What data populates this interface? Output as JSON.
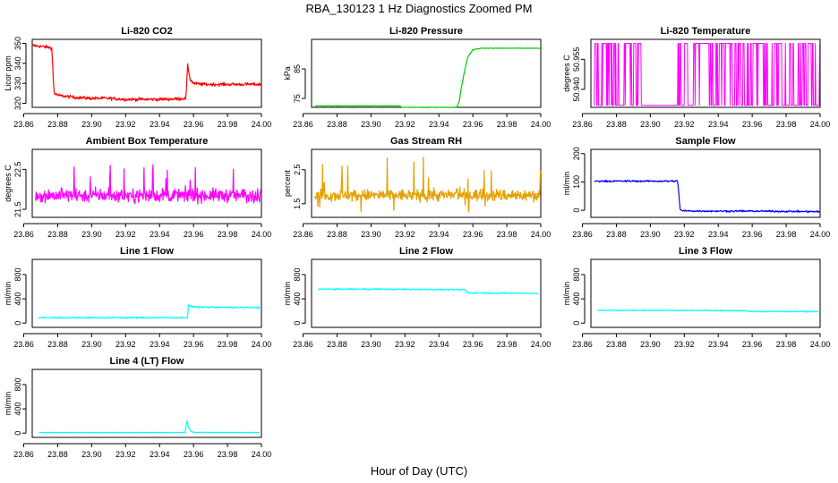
{
  "figure": {
    "title": "RBA_130123  1 Hz Diagnostics Zoomed PM",
    "xlabel": "Hour of Day (UTC)"
  },
  "chart_data": [
    {
      "type": "line",
      "title": "Li-820 CO2",
      "ylabel": "Licor ppm",
      "color": "#ff0000",
      "xlim": [
        23.865,
        24.0
      ],
      "ylim": [
        318,
        352
      ],
      "xticks": [
        23.86,
        23.88,
        23.9,
        23.92,
        23.94,
        23.96,
        23.98,
        24.0
      ],
      "yticks": [
        320,
        330,
        340,
        350
      ],
      "ytick_labels": [
        "320",
        "330",
        "340",
        "350"
      ],
      "series": [
        {
          "name": "CO2",
          "x": [
            23.865,
            23.87,
            23.875,
            23.8765,
            23.877,
            23.8775,
            23.878,
            23.88,
            23.885,
            23.89,
            23.9,
            23.91,
            23.92,
            23.93,
            23.94,
            23.95,
            23.9555,
            23.956,
            23.9565,
            23.957,
            23.958,
            23.96,
            23.965,
            23.97,
            23.98,
            23.99,
            24.0
          ],
          "values": [
            349,
            348.5,
            348,
            347.5,
            340,
            330,
            325,
            324,
            323.5,
            323,
            322.5,
            322.5,
            322,
            322,
            322,
            322.2,
            322.5,
            330,
            339,
            337,
            332,
            330,
            329.5,
            329.5,
            329.5,
            329.5,
            329.5
          ],
          "noise": 0.8
        }
      ]
    },
    {
      "type": "line",
      "title": "Li-820 Pressure",
      "ylabel": "kPa",
      "color": "#00cc00",
      "xlim": [
        23.865,
        24.0
      ],
      "ylim": [
        72,
        95
      ],
      "xticks": [
        23.86,
        23.88,
        23.9,
        23.92,
        23.94,
        23.96,
        23.98,
        24.0
      ],
      "yticks": [
        75,
        85
      ],
      "ytick_labels": [
        "75",
        "85"
      ],
      "series": [
        {
          "name": "Pressure",
          "x": [
            23.867,
            23.9,
            23.917,
            23.918,
            23.94,
            23.9505,
            23.952,
            23.953,
            23.955,
            23.957,
            23.96,
            23.965,
            23.98,
            24.0
          ],
          "values": [
            72.5,
            72.5,
            72.5,
            72.0,
            72.0,
            72.0,
            74,
            78,
            84,
            89,
            91.5,
            92,
            92,
            92
          ],
          "noise": 0.1
        }
      ]
    },
    {
      "type": "line",
      "title": "Li-820 Temperature",
      "ylabel": "degrees C",
      "color": "#ff00ff",
      "xlim": [
        23.865,
        24.0
      ],
      "ylim": [
        50.931,
        50.965
      ],
      "xticks": [
        23.86,
        23.88,
        23.9,
        23.92,
        23.94,
        23.96,
        23.98,
        24.0
      ],
      "yticks": [
        50.94,
        50.955
      ],
      "ytick_labels": [
        "50.940",
        "50.955"
      ],
      "series": [
        {
          "name": "Temperature",
          "binary": true,
          "low": 50.932,
          "high": 50.963,
          "x_start": 23.867,
          "x_end": 24.0,
          "gap": [
            23.8955,
            23.9145
          ]
        }
      ]
    },
    {
      "type": "line",
      "title": "Ambient Box Temperature",
      "ylabel": "degrees C",
      "color": "#ff00ff",
      "xlim": [
        23.865,
        24.0
      ],
      "ylim": [
        21.3,
        23.0
      ],
      "xticks": [
        23.86,
        23.88,
        23.9,
        23.92,
        23.94,
        23.96,
        23.98,
        24.0
      ],
      "yticks": [
        21.5,
        22.5
      ],
      "ytick_labels": [
        "21.5",
        "22.5"
      ],
      "series": [
        {
          "name": "Ambient",
          "x_start": 23.867,
          "x_end": 24.0,
          "base": 21.85,
          "noise": 0.3,
          "spikes": 0.55
        }
      ]
    },
    {
      "type": "scatter",
      "title": "Gas Stream RH",
      "ylabel": "percent",
      "color": "#e6a000",
      "xlim": [
        23.865,
        24.0
      ],
      "ylim": [
        1.1,
        3.1
      ],
      "xticks": [
        23.86,
        23.88,
        23.9,
        23.92,
        23.94,
        23.96,
        23.98,
        24.0
      ],
      "yticks": [
        1.5,
        2.5
      ],
      "ytick_labels": [
        "1.5",
        "2.5"
      ],
      "series": [
        {
          "name": "RH",
          "x_start": 23.867,
          "x_end": 24.0,
          "base": 1.75,
          "noise": 0.3,
          "spikes": 0.85
        }
      ]
    },
    {
      "type": "line",
      "title": "Sample Flow",
      "ylabel": "ml/min",
      "color": "#0000ff",
      "xlim": [
        23.865,
        24.0
      ],
      "ylim": [
        -25,
        215
      ],
      "xticks": [
        23.86,
        23.88,
        23.9,
        23.92,
        23.94,
        23.96,
        23.98,
        24.0
      ],
      "yticks": [
        0,
        100,
        200
      ],
      "ytick_labels": [
        "0",
        "100",
        "200"
      ],
      "series": [
        {
          "name": "Sample Flow",
          "x": [
            23.867,
            23.89,
            23.916,
            23.9168,
            23.9175,
            23.9185,
            23.93,
            23.96,
            24.0
          ],
          "values": [
            103,
            103,
            103,
            60,
            5,
            -2,
            -3,
            -3,
            -5
          ],
          "noise": 3
        }
      ]
    },
    {
      "type": "line",
      "title": "Line 1 Flow",
      "ylabel": "ml/min",
      "color": "#00ffff",
      "xlim": [
        23.865,
        24.0
      ],
      "ylim": [
        -70,
        1050
      ],
      "xticks": [
        23.86,
        23.88,
        23.9,
        23.92,
        23.94,
        23.96,
        23.98,
        24.0
      ],
      "yticks": [
        0,
        400,
        800
      ],
      "ytick_labels": [
        "0",
        "400",
        "800"
      ],
      "series": [
        {
          "name": "Line 1",
          "x": [
            23.869,
            23.9,
            23.93,
            23.9565,
            23.957,
            23.958,
            23.962,
            23.98,
            23.999
          ],
          "values": [
            90,
            90,
            90,
            90,
            300,
            280,
            265,
            260,
            255
          ],
          "noise": 12
        }
      ]
    },
    {
      "type": "line",
      "title": "Line 2 Flow",
      "ylabel": "ml/min",
      "color": "#00ffff",
      "xlim": [
        23.865,
        24.0
      ],
      "ylim": [
        -70,
        1050
      ],
      "xticks": [
        23.86,
        23.88,
        23.9,
        23.92,
        23.94,
        23.96,
        23.98,
        24.0
      ],
      "yticks": [
        0,
        400,
        800
      ],
      "ytick_labels": [
        "0",
        "400",
        "800"
      ],
      "series": [
        {
          "name": "Line 2",
          "x": [
            23.869,
            23.9,
            23.93,
            23.9555,
            23.957,
            23.97,
            23.999
          ],
          "values": [
            560,
            560,
            555,
            550,
            500,
            495,
            490
          ],
          "noise": 10
        }
      ]
    },
    {
      "type": "line",
      "title": "Line 3 Flow",
      "ylabel": "ml/min",
      "color": "#00ffff",
      "xlim": [
        23.865,
        24.0
      ],
      "ylim": [
        -70,
        1050
      ],
      "xticks": [
        23.86,
        23.88,
        23.9,
        23.92,
        23.94,
        23.96,
        23.98,
        24.0
      ],
      "yticks": [
        0,
        400,
        800
      ],
      "ytick_labels": [
        "0",
        "400",
        "800"
      ],
      "series": [
        {
          "name": "Line 3",
          "x": [
            23.869,
            23.92,
            23.955,
            23.96,
            23.999
          ],
          "values": [
            210,
            210,
            205,
            190,
            190
          ],
          "noise": 8
        }
      ]
    },
    {
      "type": "line",
      "title": "Line 4 (LT) Flow",
      "ylabel": "ml/min",
      "color": "#00ffff",
      "xlim": [
        23.865,
        24.0
      ],
      "ylim": [
        -70,
        1050
      ],
      "xticks": [
        23.86,
        23.88,
        23.9,
        23.92,
        23.94,
        23.96,
        23.98,
        24.0
      ],
      "yticks": [
        0,
        400,
        800
      ],
      "ytick_labels": [
        "0",
        "400",
        "800"
      ],
      "series": [
        {
          "name": "Line 4",
          "x": [
            23.869,
            23.955,
            23.9562,
            23.9568,
            23.958,
            23.96,
            23.999
          ],
          "values": [
            10,
            10,
            220,
            120,
            40,
            12,
            10
          ],
          "noise": 4
        }
      ]
    }
  ]
}
